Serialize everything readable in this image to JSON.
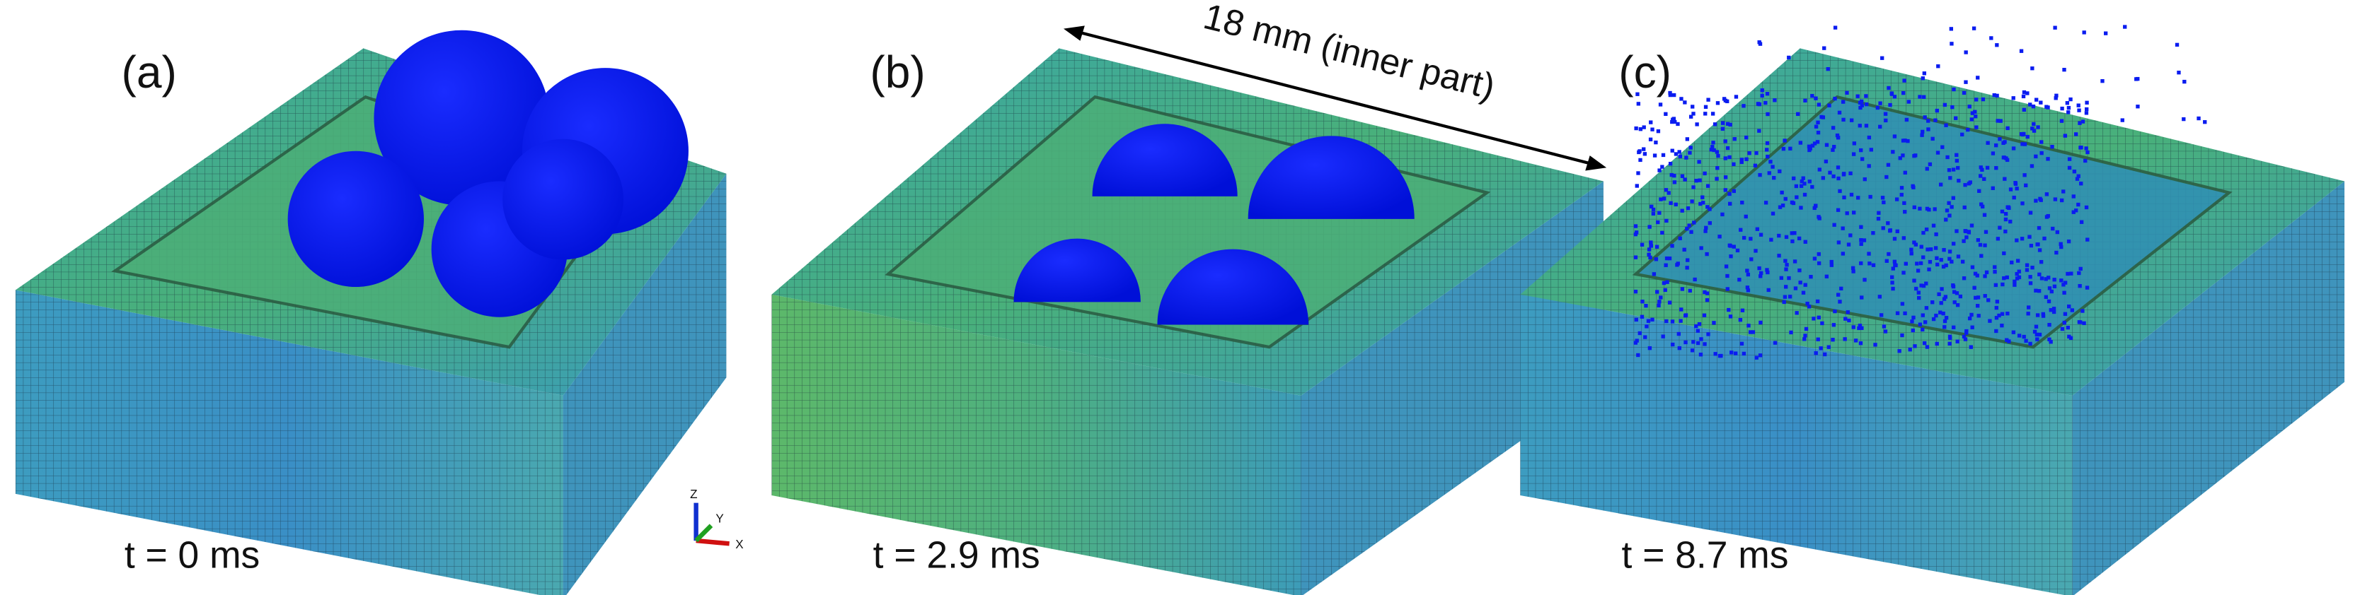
{
  "panels": [
    {
      "label": "(a)",
      "time": "t = 0 ms"
    },
    {
      "label": "(b)",
      "time": "t = 2.9 ms"
    },
    {
      "label": "(c)",
      "time": "t = 8.7 ms"
    }
  ],
  "dimension": "18 mm (inner part)",
  "triad": {
    "z": "Z",
    "y": "Y",
    "x": "X"
  }
}
